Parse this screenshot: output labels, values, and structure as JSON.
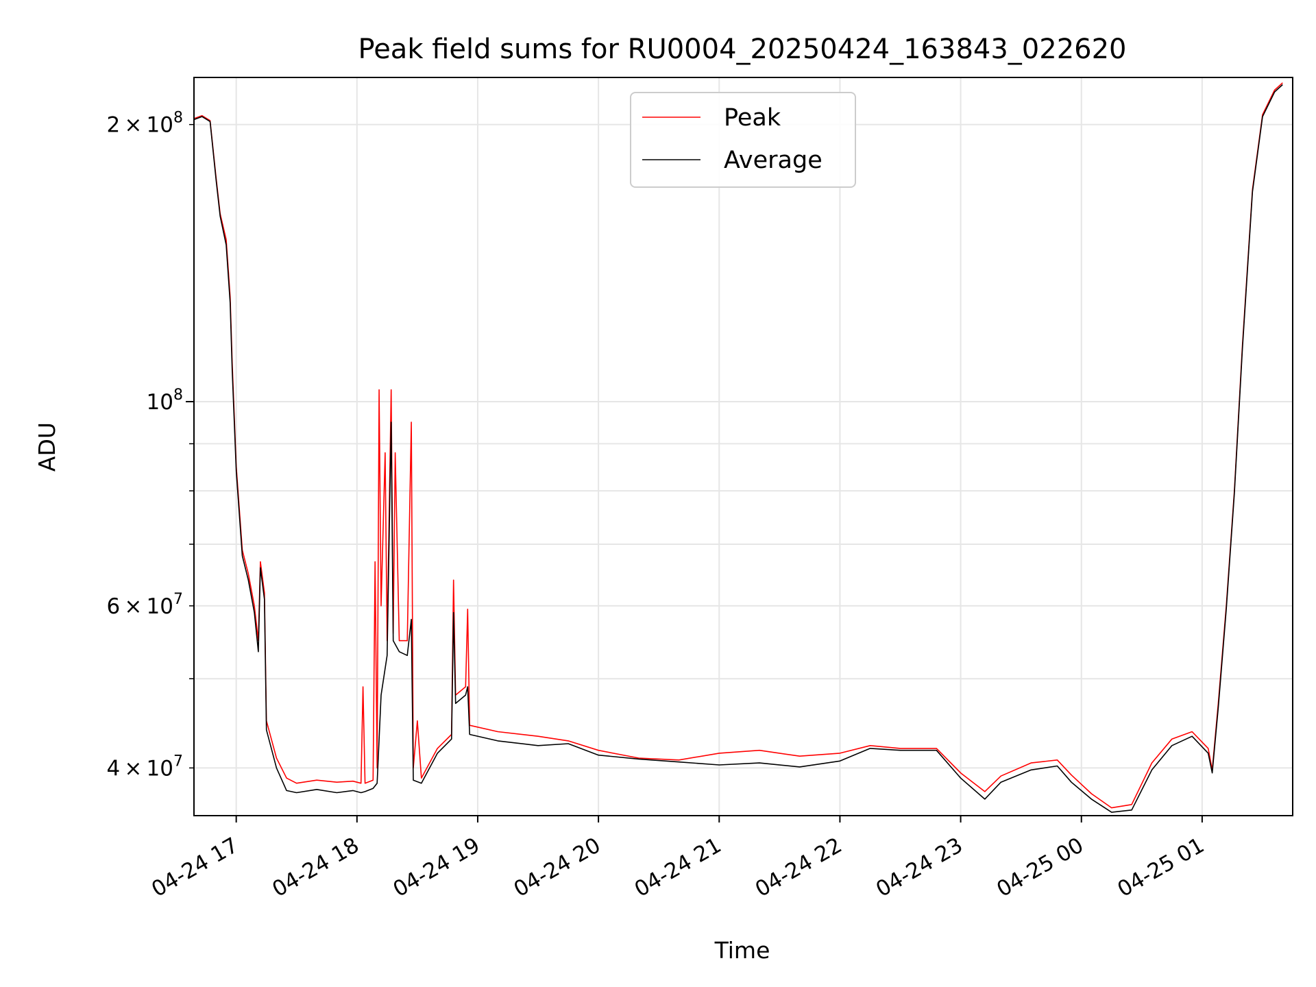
{
  "chart_data": {
    "type": "line",
    "title": "Peak field sums for RU0004_20250424_163843_022620",
    "xlabel": "Time",
    "ylabel": "ADU",
    "xlim": [
      "2025-04-24 16:39",
      "2025-04-25 01:45"
    ],
    "ylim": [
      35500000,
      225000000
    ],
    "yscale": "log",
    "grid": true,
    "legend_position": "top-center",
    "x_ticks": [
      {
        "value": "2025-04-24 17:00",
        "label": "04-24 17"
      },
      {
        "value": "2025-04-24 18:00",
        "label": "04-24 18"
      },
      {
        "value": "2025-04-24 19:00",
        "label": "04-24 19"
      },
      {
        "value": "2025-04-24 20:00",
        "label": "04-24 20"
      },
      {
        "value": "2025-04-24 21:00",
        "label": "04-24 21"
      },
      {
        "value": "2025-04-24 22:00",
        "label": "04-24 22"
      },
      {
        "value": "2025-04-24 23:00",
        "label": "04-24 23"
      },
      {
        "value": "2025-04-25 00:00",
        "label": "04-25 00"
      },
      {
        "value": "2025-04-25 01:00",
        "label": "04-25 01"
      }
    ],
    "y_ticks_major": [
      {
        "value": 100000000,
        "base": "10",
        "exp": "8"
      }
    ],
    "y_ticks_minor": [
      {
        "value": 40000000,
        "mant": "4",
        "exp": "7",
        "labeled": true
      },
      {
        "value": 50000000,
        "labeled": false
      },
      {
        "value": 60000000,
        "mant": "6",
        "exp": "7",
        "labeled": true
      },
      {
        "value": 70000000,
        "labeled": false
      },
      {
        "value": 80000000,
        "labeled": false
      },
      {
        "value": 90000000,
        "labeled": false
      },
      {
        "value": 200000000,
        "mant": "2",
        "exp": "8",
        "labeled": true
      }
    ],
    "series": [
      {
        "name": "Peak",
        "color": "#ff0000",
        "points": [
          [
            "2025-04-24 16:39",
            203000000
          ],
          [
            "2025-04-24 16:43",
            204500000
          ],
          [
            "2025-04-24 16:47",
            202000000
          ],
          [
            "2025-04-24 16:50",
            175000000
          ],
          [
            "2025-04-24 16:52",
            160000000
          ],
          [
            "2025-04-24 16:55",
            150000000
          ],
          [
            "2025-04-24 16:57",
            130000000
          ],
          [
            "2025-04-24 16:58",
            110000000
          ],
          [
            "2025-04-24 17:00",
            85000000
          ],
          [
            "2025-04-24 17:03",
            69000000
          ],
          [
            "2025-04-24 17:06",
            65000000
          ],
          [
            "2025-04-24 17:09",
            60000000
          ],
          [
            "2025-04-24 17:11",
            55000000
          ],
          [
            "2025-04-24 17:12",
            67000000
          ],
          [
            "2025-04-24 17:14",
            62000000
          ],
          [
            "2025-04-24 17:15",
            45000000
          ],
          [
            "2025-04-24 17:20",
            41000000
          ],
          [
            "2025-04-24 17:25",
            39000000
          ],
          [
            "2025-04-24 17:30",
            38500000
          ],
          [
            "2025-04-24 17:40",
            38800000
          ],
          [
            "2025-04-24 17:50",
            38600000
          ],
          [
            "2025-04-24 17:58",
            38700000
          ],
          [
            "2025-04-24 18:02",
            38500000
          ],
          [
            "2025-04-24 18:03",
            49000000
          ],
          [
            "2025-04-24 18:04",
            38500000
          ],
          [
            "2025-04-24 18:08",
            38800000
          ],
          [
            "2025-04-24 18:09",
            67000000
          ],
          [
            "2025-04-24 18:10",
            40000000
          ],
          [
            "2025-04-24 18:11",
            103000000
          ],
          [
            "2025-04-24 18:12",
            60000000
          ],
          [
            "2025-04-24 18:14",
            88000000
          ],
          [
            "2025-04-24 18:15",
            55000000
          ],
          [
            "2025-04-24 18:17",
            103000000
          ],
          [
            "2025-04-24 18:18",
            56000000
          ],
          [
            "2025-04-24 18:19",
            88000000
          ],
          [
            "2025-04-24 18:21",
            55000000
          ],
          [
            "2025-04-24 18:25",
            55000000
          ],
          [
            "2025-04-24 18:27",
            95000000
          ],
          [
            "2025-04-24 18:28",
            40000000
          ],
          [
            "2025-04-24 18:30",
            45000000
          ],
          [
            "2025-04-24 18:32",
            39000000
          ],
          [
            "2025-04-24 18:40",
            42000000
          ],
          [
            "2025-04-24 18:47",
            43500000
          ],
          [
            "2025-04-24 18:48",
            64000000
          ],
          [
            "2025-04-24 18:49",
            48000000
          ],
          [
            "2025-04-24 18:54",
            49000000
          ],
          [
            "2025-04-24 18:55",
            59500000
          ],
          [
            "2025-04-24 18:56",
            44500000
          ],
          [
            "2025-04-24 19:10",
            43800000
          ],
          [
            "2025-04-24 19:30",
            43300000
          ],
          [
            "2025-04-24 19:45",
            42800000
          ],
          [
            "2025-04-24 20:00",
            41800000
          ],
          [
            "2025-04-24 20:20",
            41000000
          ],
          [
            "2025-04-24 20:40",
            40800000
          ],
          [
            "2025-04-24 21:00",
            41500000
          ],
          [
            "2025-04-24 21:20",
            41800000
          ],
          [
            "2025-04-24 21:40",
            41200000
          ],
          [
            "2025-04-24 22:00",
            41500000
          ],
          [
            "2025-04-24 22:15",
            42300000
          ],
          [
            "2025-04-24 22:30",
            42000000
          ],
          [
            "2025-04-24 22:48",
            42000000
          ],
          [
            "2025-04-24 23:00",
            39500000
          ],
          [
            "2025-04-24 23:12",
            37700000
          ],
          [
            "2025-04-24 23:20",
            39200000
          ],
          [
            "2025-04-24 23:35",
            40500000
          ],
          [
            "2025-04-24 23:48",
            40800000
          ],
          [
            "2025-04-24 23:55",
            39300000
          ],
          [
            "2025-04-25 00:05",
            37500000
          ],
          [
            "2025-04-25 00:15",
            36200000
          ],
          [
            "2025-04-25 00:25",
            36500000
          ],
          [
            "2025-04-25 00:35",
            40500000
          ],
          [
            "2025-04-25 00:45",
            43000000
          ],
          [
            "2025-04-25 00:55",
            43800000
          ],
          [
            "2025-04-25 01:03",
            42000000
          ],
          [
            "2025-04-25 01:05",
            39800000
          ],
          [
            "2025-04-25 01:08",
            47000000
          ],
          [
            "2025-04-25 01:12",
            60000000
          ],
          [
            "2025-04-25 01:16",
            80000000
          ],
          [
            "2025-04-25 01:20",
            115000000
          ],
          [
            "2025-04-25 01:25",
            170000000
          ],
          [
            "2025-04-25 01:30",
            205000000
          ],
          [
            "2025-04-25 01:36",
            218000000
          ],
          [
            "2025-04-25 01:40",
            222000000
          ]
        ]
      },
      {
        "name": "Average",
        "color": "#000000",
        "points": [
          [
            "2025-04-24 16:39",
            202500000
          ],
          [
            "2025-04-24 16:43",
            204000000
          ],
          [
            "2025-04-24 16:47",
            201500000
          ],
          [
            "2025-04-24 16:50",
            174000000
          ],
          [
            "2025-04-24 16:52",
            159000000
          ],
          [
            "2025-04-24 16:55",
            148000000
          ],
          [
            "2025-04-24 16:57",
            128000000
          ],
          [
            "2025-04-24 16:58",
            108000000
          ],
          [
            "2025-04-24 17:00",
            84000000
          ],
          [
            "2025-04-24 17:03",
            68000000
          ],
          [
            "2025-04-24 17:06",
            64000000
          ],
          [
            "2025-04-24 17:09",
            59000000
          ],
          [
            "2025-04-24 17:11",
            53500000
          ],
          [
            "2025-04-24 17:12",
            66000000
          ],
          [
            "2025-04-24 17:14",
            61000000
          ],
          [
            "2025-04-24 17:15",
            44000000
          ],
          [
            "2025-04-24 17:20",
            40000000
          ],
          [
            "2025-04-24 17:25",
            37800000
          ],
          [
            "2025-04-24 17:30",
            37600000
          ],
          [
            "2025-04-24 17:40",
            37900000
          ],
          [
            "2025-04-24 17:50",
            37600000
          ],
          [
            "2025-04-24 17:58",
            37800000
          ],
          [
            "2025-04-24 18:02",
            37600000
          ],
          [
            "2025-04-24 18:04",
            37700000
          ],
          [
            "2025-04-24 18:08",
            38000000
          ],
          [
            "2025-04-24 18:10",
            38500000
          ],
          [
            "2025-04-24 18:12",
            48000000
          ],
          [
            "2025-04-24 18:15",
            53000000
          ],
          [
            "2025-04-24 18:17",
            95000000
          ],
          [
            "2025-04-24 18:18",
            55000000
          ],
          [
            "2025-04-24 18:21",
            53500000
          ],
          [
            "2025-04-24 18:25",
            53000000
          ],
          [
            "2025-04-24 18:27",
            58000000
          ],
          [
            "2025-04-24 18:28",
            38800000
          ],
          [
            "2025-04-24 18:32",
            38500000
          ],
          [
            "2025-04-24 18:40",
            41500000
          ],
          [
            "2025-04-24 18:47",
            43000000
          ],
          [
            "2025-04-24 18:48",
            59000000
          ],
          [
            "2025-04-24 18:49",
            47000000
          ],
          [
            "2025-04-24 18:54",
            48000000
          ],
          [
            "2025-04-24 18:55",
            49000000
          ],
          [
            "2025-04-24 18:56",
            43500000
          ],
          [
            "2025-04-24 19:10",
            42800000
          ],
          [
            "2025-04-24 19:30",
            42300000
          ],
          [
            "2025-04-24 19:45",
            42500000
          ],
          [
            "2025-04-24 20:00",
            41300000
          ],
          [
            "2025-04-24 20:20",
            40900000
          ],
          [
            "2025-04-24 20:40",
            40600000
          ],
          [
            "2025-04-24 21:00",
            40300000
          ],
          [
            "2025-04-24 21:20",
            40500000
          ],
          [
            "2025-04-24 21:40",
            40100000
          ],
          [
            "2025-04-24 22:00",
            40700000
          ],
          [
            "2025-04-24 22:15",
            42000000
          ],
          [
            "2025-04-24 22:30",
            41800000
          ],
          [
            "2025-04-24 22:48",
            41800000
          ],
          [
            "2025-04-24 23:00",
            39000000
          ],
          [
            "2025-04-24 23:12",
            37000000
          ],
          [
            "2025-04-24 23:20",
            38600000
          ],
          [
            "2025-04-24 23:35",
            39800000
          ],
          [
            "2025-04-24 23:48",
            40200000
          ],
          [
            "2025-04-24 23:55",
            38600000
          ],
          [
            "2025-04-25 00:05",
            37000000
          ],
          [
            "2025-04-25 00:15",
            35800000
          ],
          [
            "2025-04-25 00:25",
            36000000
          ],
          [
            "2025-04-25 00:35",
            39800000
          ],
          [
            "2025-04-25 00:45",
            42300000
          ],
          [
            "2025-04-25 00:55",
            43300000
          ],
          [
            "2025-04-25 01:03",
            41500000
          ],
          [
            "2025-04-25 01:05",
            39500000
          ],
          [
            "2025-04-25 01:08",
            46500000
          ],
          [
            "2025-04-25 01:12",
            59500000
          ],
          [
            "2025-04-25 01:16",
            79500000
          ],
          [
            "2025-04-25 01:20",
            114000000
          ],
          [
            "2025-04-25 01:25",
            169000000
          ],
          [
            "2025-04-25 01:30",
            204000000
          ],
          [
            "2025-04-25 01:36",
            217000000
          ],
          [
            "2025-04-25 01:40",
            221000000
          ]
        ]
      }
    ]
  }
}
